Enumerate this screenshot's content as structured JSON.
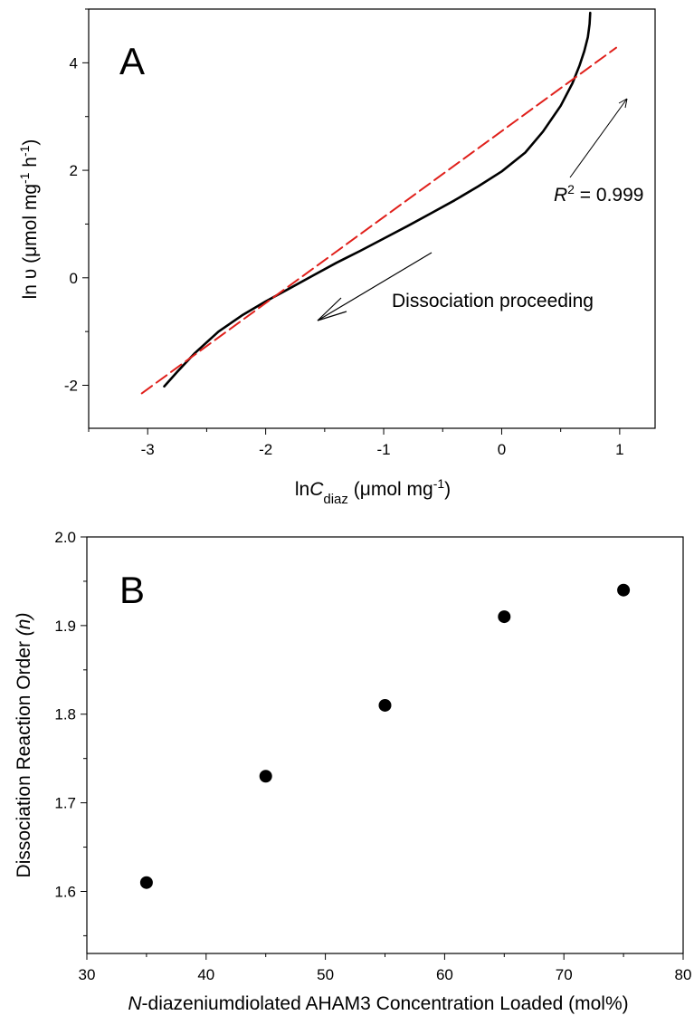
{
  "chart_data": [
    {
      "panel_label": "A",
      "type": "line",
      "xlabel": {
        "prefix": "ln",
        "var": "C",
        "sub": "diaz",
        "unit": " (μmol mg",
        "unit_sup": "-1",
        "unit_end": ")"
      },
      "ylabel": {
        "text": "ln υ (μmol mg",
        "sup1": "-1",
        "mid": " h",
        "sup2": "-1",
        "end": ")"
      },
      "xlim": [
        -3.5,
        1.3
      ],
      "ylim": [
        -2.8,
        5.0
      ],
      "xticks": [
        -3,
        -2,
        -1,
        0,
        1
      ],
      "xtick_labels": [
        "-3",
        "-2",
        "-1",
        "0",
        "1"
      ],
      "yticks": [
        -2,
        0,
        2,
        4
      ],
      "ytick_labels": [
        "-2",
        "0",
        "2",
        "4"
      ],
      "series": [
        {
          "kind": "data",
          "color": "#000000",
          "x": [
            -2.86,
            -2.75,
            -2.6,
            -2.4,
            -2.2,
            -2.0,
            -1.8,
            -1.6,
            -1.4,
            -1.2,
            -1.0,
            -0.8,
            -0.6,
            -0.4,
            -0.2,
            0.0,
            0.2,
            0.35,
            0.5,
            0.6,
            0.66,
            0.7,
            0.73,
            0.745,
            0.75
          ],
          "y": [
            -2.02,
            -1.75,
            -1.4,
            -1.0,
            -0.7,
            -0.44,
            -0.2,
            0.04,
            0.28,
            0.5,
            0.73,
            0.96,
            1.2,
            1.44,
            1.7,
            1.98,
            2.33,
            2.72,
            3.2,
            3.62,
            3.95,
            4.22,
            4.48,
            4.72,
            4.93
          ]
        },
        {
          "kind": "fit",
          "color": "#e0201b",
          "dash": true,
          "x": [
            -3.05,
            0.97
          ],
          "y": [
            -2.15,
            4.28
          ]
        }
      ],
      "annotations": [
        {
          "italic": "R",
          "sup": "2",
          "text": " = 0.999"
        },
        {
          "text": "Dissociation proceeding"
        }
      ]
    },
    {
      "panel_label": "B",
      "type": "scatter",
      "xlabel": {
        "italic": "N",
        "text": "-diazeniumdiolated AHAM3 Concentration Loaded (mol%)"
      },
      "ylabel": {
        "text": "Dissociation Reaction Order ",
        "italic": "(n)"
      },
      "xlim": [
        30,
        80
      ],
      "ylim": [
        1.53,
        2.0
      ],
      "xticks": [
        30,
        40,
        50,
        60,
        70,
        80
      ],
      "xtick_labels": [
        "30",
        "40",
        "50",
        "60",
        "70",
        "80"
      ],
      "yticks": [
        1.6,
        1.7,
        1.8,
        1.9,
        2.0
      ],
      "ytick_labels": [
        "1.6",
        "1.7",
        "1.8",
        "1.9",
        "2.0"
      ],
      "series": [
        {
          "color": "#000000",
          "x": [
            35,
            45,
            55,
            65,
            75
          ],
          "y": [
            1.61,
            1.73,
            1.81,
            1.91,
            1.94
          ]
        }
      ]
    }
  ]
}
